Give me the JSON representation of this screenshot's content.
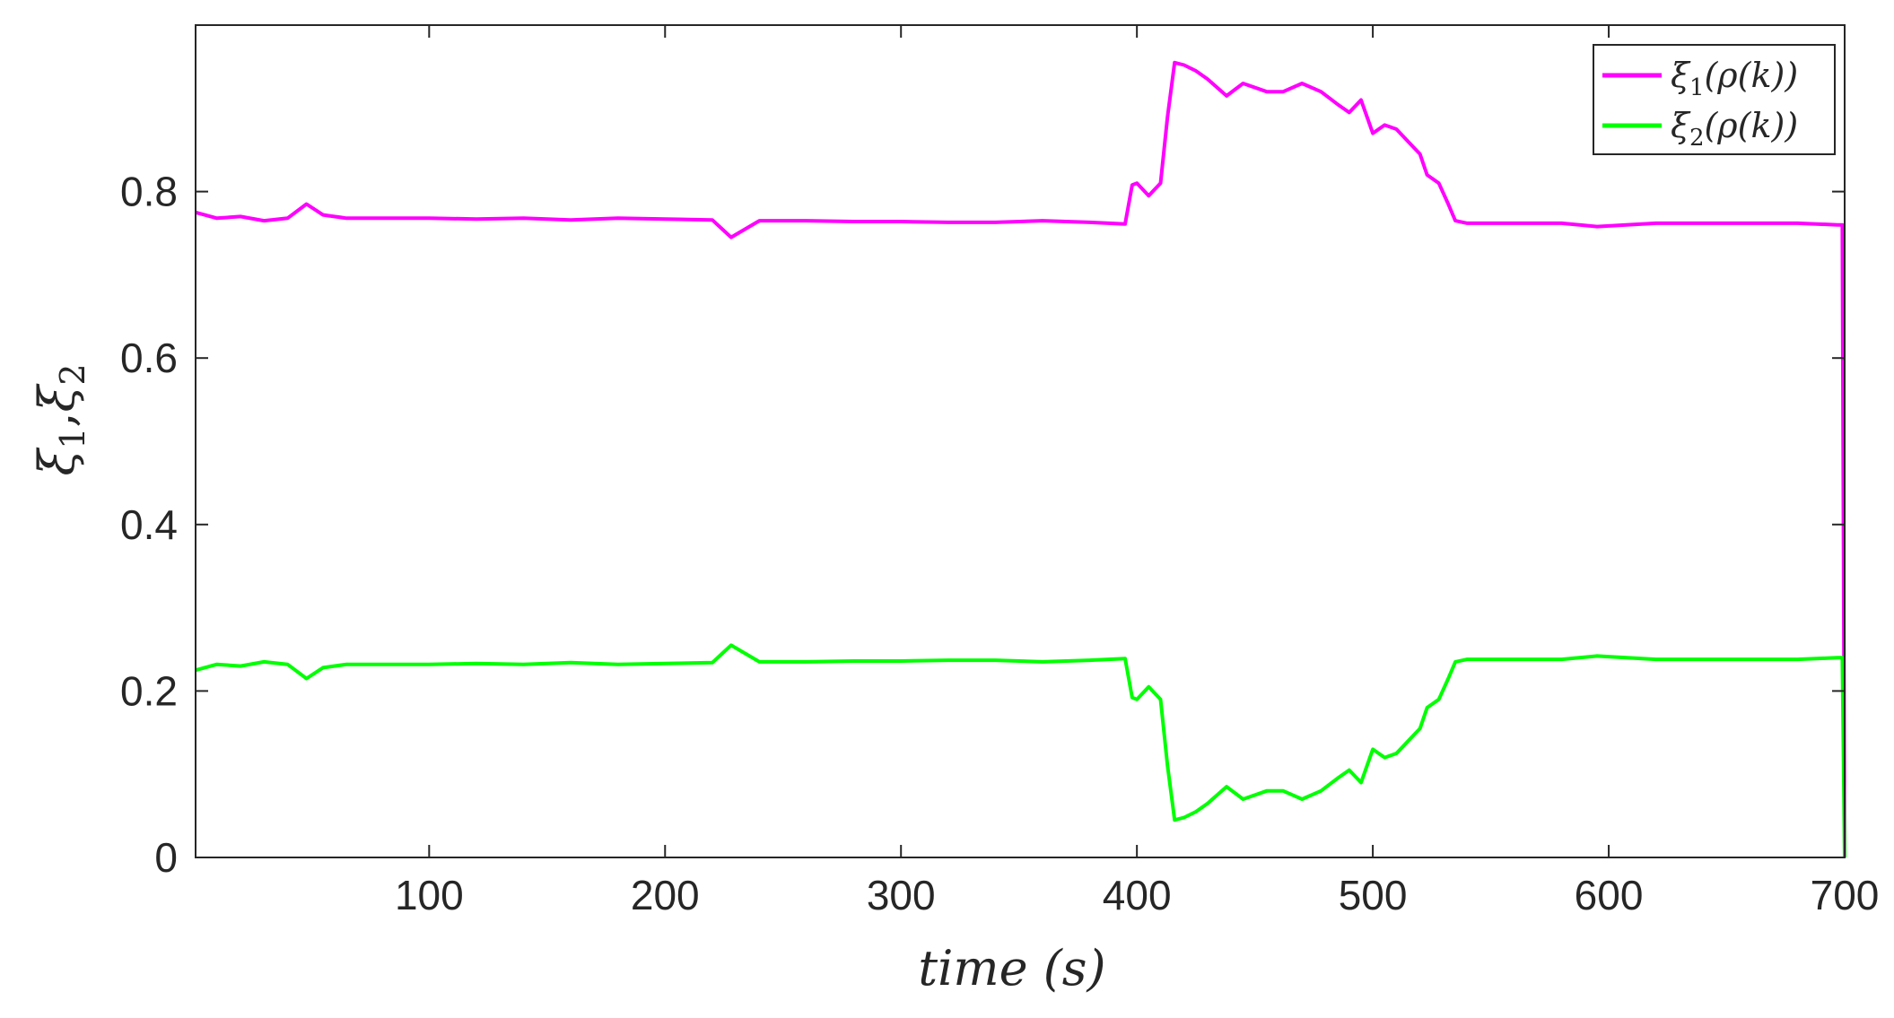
{
  "chart_data": {
    "type": "line",
    "xlabel": "time (s)",
    "xlabel_parts": {
      "main": "time",
      "unit": "(s)"
    },
    "ylabel": "ξ1,ξ2",
    "ylabel_parts": {
      "sym1": "ξ",
      "sub1": "1",
      "sep": ",",
      "sym2": "ξ",
      "sub2": "2"
    },
    "xlim": [
      1,
      700
    ],
    "ylim": [
      0,
      1
    ],
    "xticks": [
      100,
      200,
      300,
      400,
      500,
      600,
      700
    ],
    "yticks": [
      0,
      0.2,
      0.4,
      0.6,
      0.8
    ],
    "ytick_labels": [
      "0",
      "0.2",
      "0.4",
      "0.6",
      "0.8"
    ],
    "legend_position": "top-right",
    "grid": false,
    "series": [
      {
        "name": "ξ1(ρ(k))",
        "label_parts": {
          "sym": "ξ",
          "sub": "1",
          "rest": "(ρ(k))"
        },
        "color": "#ff00ff",
        "x": [
          1,
          10,
          20,
          30,
          40,
          48,
          55,
          65,
          80,
          100,
          120,
          140,
          160,
          180,
          200,
          220,
          228,
          240,
          260,
          280,
          300,
          320,
          340,
          360,
          380,
          395,
          398,
          400,
          405,
          410,
          413,
          416,
          420,
          425,
          430,
          438,
          445,
          455,
          462,
          470,
          478,
          485,
          490,
          495,
          500,
          505,
          510,
          515,
          520,
          523,
          528,
          532,
          535,
          540,
          560,
          580,
          595,
          620,
          640,
          660,
          680,
          697,
          699,
          700
        ],
        "y": [
          0.775,
          0.768,
          0.77,
          0.765,
          0.768,
          0.785,
          0.772,
          0.768,
          0.768,
          0.768,
          0.767,
          0.768,
          0.766,
          0.768,
          0.767,
          0.766,
          0.745,
          0.765,
          0.765,
          0.764,
          0.764,
          0.763,
          0.763,
          0.765,
          0.763,
          0.761,
          0.808,
          0.81,
          0.795,
          0.81,
          0.89,
          0.955,
          0.952,
          0.945,
          0.935,
          0.915,
          0.93,
          0.92,
          0.92,
          0.93,
          0.92,
          0.905,
          0.895,
          0.91,
          0.87,
          0.88,
          0.875,
          0.86,
          0.845,
          0.82,
          0.81,
          0.785,
          0.765,
          0.762,
          0.762,
          0.762,
          0.758,
          0.762,
          0.762,
          0.762,
          0.762,
          0.76,
          0.76,
          0.0
        ]
      },
      {
        "name": "ξ2(ρ(k))",
        "label_parts": {
          "sym": "ξ",
          "sub": "2",
          "rest": "(ρ(k))"
        },
        "color": "#00ff00",
        "x": [
          1,
          10,
          20,
          30,
          40,
          48,
          55,
          65,
          80,
          100,
          120,
          140,
          160,
          180,
          200,
          220,
          228,
          240,
          260,
          280,
          300,
          320,
          340,
          360,
          380,
          395,
          398,
          400,
          405,
          410,
          413,
          416,
          420,
          425,
          430,
          438,
          445,
          455,
          462,
          470,
          478,
          485,
          490,
          495,
          500,
          505,
          510,
          515,
          520,
          523,
          528,
          532,
          535,
          540,
          560,
          580,
          595,
          620,
          640,
          660,
          680,
          697,
          699,
          700
        ],
        "y": [
          0.225,
          0.232,
          0.23,
          0.235,
          0.232,
          0.215,
          0.228,
          0.232,
          0.232,
          0.232,
          0.233,
          0.232,
          0.234,
          0.232,
          0.233,
          0.234,
          0.255,
          0.235,
          0.235,
          0.236,
          0.236,
          0.237,
          0.237,
          0.235,
          0.237,
          0.239,
          0.192,
          0.19,
          0.205,
          0.19,
          0.11,
          0.045,
          0.048,
          0.055,
          0.065,
          0.085,
          0.07,
          0.08,
          0.08,
          0.07,
          0.08,
          0.095,
          0.105,
          0.09,
          0.13,
          0.12,
          0.125,
          0.14,
          0.155,
          0.18,
          0.19,
          0.215,
          0.235,
          0.238,
          0.238,
          0.238,
          0.242,
          0.238,
          0.238,
          0.238,
          0.238,
          0.24,
          0.24,
          0.0
        ]
      }
    ]
  }
}
